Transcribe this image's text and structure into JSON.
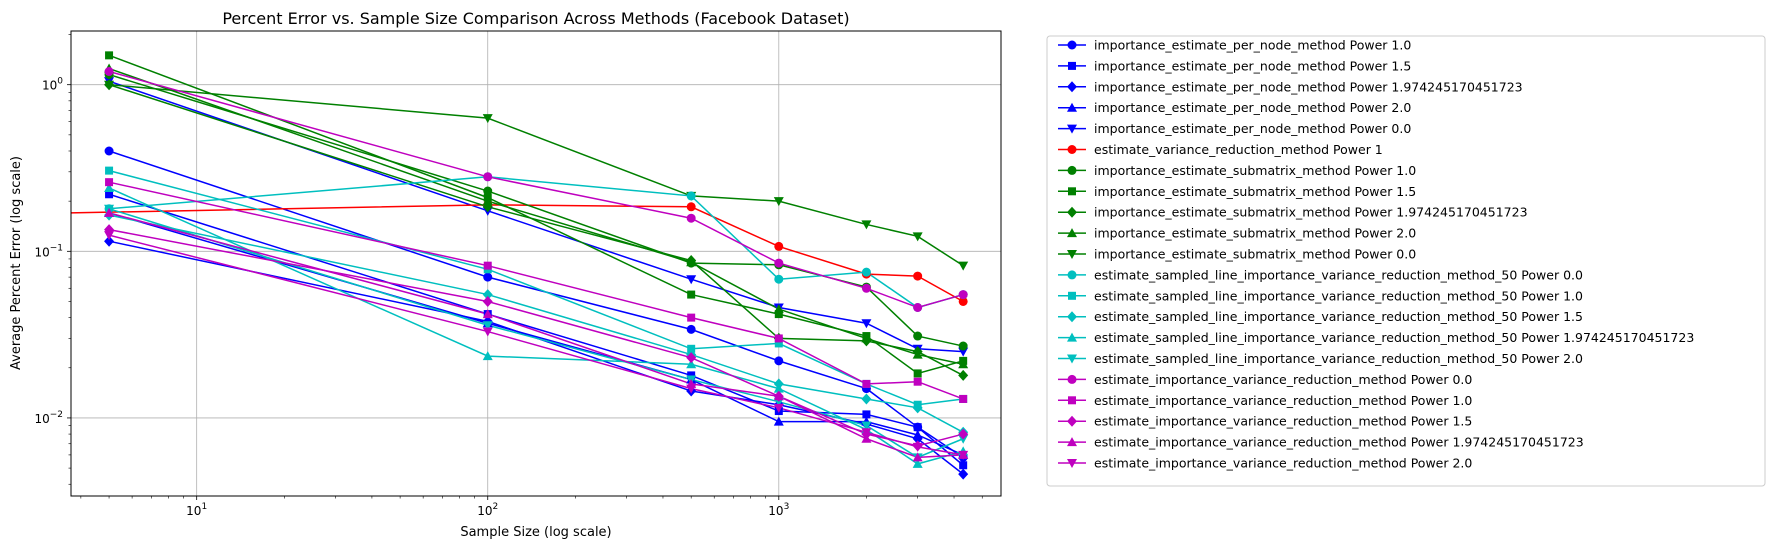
{
  "chart_data": {
    "type": "line",
    "title": "Percent Error vs. Sample Size Comparison Across Methods (Facebook Dataset)",
    "xlabel": "Sample Size (log scale)",
    "ylabel": "Average Percent Error (log scale)",
    "xscale": "log",
    "yscale": "log",
    "xlim": [
      3.7,
      5800
    ],
    "ylim": [
      0.0034,
      2.1
    ],
    "grid": true,
    "legend_position": "outside-right",
    "x_ticks": [
      {
        "value": 10,
        "label": "10",
        "exp": "1"
      },
      {
        "value": 100,
        "label": "10",
        "exp": "2"
      },
      {
        "value": 1000,
        "label": "10",
        "exp": "3"
      }
    ],
    "y_ticks": [
      {
        "value": 0.01,
        "label": "10",
        "exp": "−2"
      },
      {
        "value": 0.1,
        "label": "10",
        "exp": "−1"
      },
      {
        "value": 1,
        "label": "10",
        "exp": "0"
      }
    ],
    "x": [
      5,
      100,
      500,
      1000,
      2000,
      3000,
      4300
    ],
    "series": [
      {
        "name": "importance_estimate_per_node_method Power 1.0",
        "color": "#0000ff",
        "marker": "circle",
        "values": [
          0.4,
          0.07,
          0.034,
          0.022,
          0.015,
          0.0088,
          0.0058
        ]
      },
      {
        "name": "importance_estimate_per_node_method Power 1.5",
        "color": "#0000ff",
        "marker": "square",
        "values": [
          0.22,
          0.042,
          0.018,
          0.011,
          0.0105,
          0.0088,
          0.0052
        ]
      },
      {
        "name": "importance_estimate_per_node_method Power 1.974245170451723",
        "color": "#0000ff",
        "marker": "diamond",
        "values": [
          0.115,
          0.038,
          0.0145,
          0.012,
          0.0092,
          0.0075,
          0.0046
        ]
      },
      {
        "name": "importance_estimate_per_node_method Power 2.0",
        "color": "#0000ff",
        "marker": "triangle-up",
        "values": [
          0.17,
          0.037,
          0.017,
          0.0095,
          0.0095,
          0.0079,
          0.006
        ]
      },
      {
        "name": "importance_estimate_per_node_method Power 0.0",
        "color": "#0000ff",
        "marker": "triangle-down",
        "values": [
          1.05,
          0.175,
          0.068,
          0.046,
          0.037,
          0.026,
          0.025
        ]
      },
      {
        "name": "estimate_variance_reduction_method Power 1",
        "color": "#ff0000",
        "marker": "circle",
        "values": [
          0.17,
          0.19,
          0.185,
          0.107,
          0.073,
          0.071,
          0.05
        ]
      },
      {
        "name": "importance_estimate_submatrix_method Power 1.0",
        "color": "#008000",
        "marker": "circle",
        "values": [
          1.15,
          0.23,
          0.085,
          0.083,
          0.061,
          0.031,
          0.027
        ]
      },
      {
        "name": "importance_estimate_submatrix_method Power 1.5",
        "color": "#008000",
        "marker": "square",
        "values": [
          1.5,
          0.21,
          0.055,
          0.042,
          0.031,
          0.0185,
          0.022
        ]
      },
      {
        "name": "importance_estimate_submatrix_method Power 1.974245170451723",
        "color": "#008000",
        "marker": "diamond",
        "values": [
          1.0,
          0.185,
          0.088,
          0.03,
          0.029,
          0.025,
          0.018
        ]
      },
      {
        "name": "importance_estimate_submatrix_method Power 2.0",
        "color": "#008000",
        "marker": "triangle-up",
        "values": [
          1.25,
          0.2,
          0.086,
          0.045,
          0.03,
          0.024,
          0.021
        ]
      },
      {
        "name": "importance_estimate_submatrix_method Power 0.0",
        "color": "#008000",
        "marker": "triangle-down",
        "values": [
          1.0,
          0.63,
          0.215,
          0.2,
          0.145,
          0.123,
          0.082
        ]
      },
      {
        "name": "estimate_sampled_line_importance_variance_reduction_method_50 Power 0.0",
        "color": "#00bfbf",
        "marker": "circle",
        "values": [
          0.18,
          0.28,
          0.215,
          0.068,
          0.075,
          0.046,
          0.055
        ]
      },
      {
        "name": "estimate_sampled_line_importance_variance_reduction_method_50 Power 1.0",
        "color": "#00bfbf",
        "marker": "square",
        "values": [
          0.305,
          0.078,
          0.026,
          0.028,
          0.016,
          0.012,
          0.013
        ]
      },
      {
        "name": "estimate_sampled_line_importance_variance_reduction_method_50 Power 1.5",
        "color": "#00bfbf",
        "marker": "diamond",
        "values": [
          0.165,
          0.055,
          0.024,
          0.016,
          0.013,
          0.0115,
          0.0082
        ]
      },
      {
        "name": "estimate_sampled_line_importance_variance_reduction_method_50 Power 1.974245170451723",
        "color": "#00bfbf",
        "marker": "triangle-up",
        "values": [
          0.24,
          0.0235,
          0.021,
          0.015,
          0.0085,
          0.0053,
          0.0063
        ]
      },
      {
        "name": "estimate_sampled_line_importance_variance_reduction_method_50 Power 2.0",
        "color": "#00bfbf",
        "marker": "triangle-down",
        "values": [
          0.18,
          0.036,
          0.017,
          0.0125,
          0.009,
          0.0058,
          0.0075
        ]
      },
      {
        "name": "estimate_importance_variance_reduction_method Power 0.0",
        "color": "#bf00bf",
        "marker": "circle",
        "values": [
          1.2,
          0.28,
          0.158,
          0.085,
          0.06,
          0.046,
          0.055
        ]
      },
      {
        "name": "estimate_importance_variance_reduction_method Power 1.0",
        "color": "#bf00bf",
        "marker": "square",
        "values": [
          0.26,
          0.082,
          0.04,
          0.03,
          0.016,
          0.0165,
          0.013
        ]
      },
      {
        "name": "estimate_importance_variance_reduction_method Power 1.5",
        "color": "#bf00bf",
        "marker": "diamond",
        "values": [
          0.135,
          0.05,
          0.023,
          0.0135,
          0.008,
          0.0068,
          0.008
        ]
      },
      {
        "name": "estimate_importance_variance_reduction_method Power 1.974245170451723",
        "color": "#bf00bf",
        "marker": "triangle-up",
        "values": [
          0.17,
          0.042,
          0.016,
          0.0135,
          0.0075,
          0.0058,
          0.006
        ]
      },
      {
        "name": "estimate_importance_variance_reduction_method Power 2.0",
        "color": "#bf00bf",
        "marker": "triangle-down",
        "values": [
          0.125,
          0.033,
          0.015,
          0.0115,
          0.0082,
          0.0067,
          0.006
        ]
      }
    ]
  }
}
